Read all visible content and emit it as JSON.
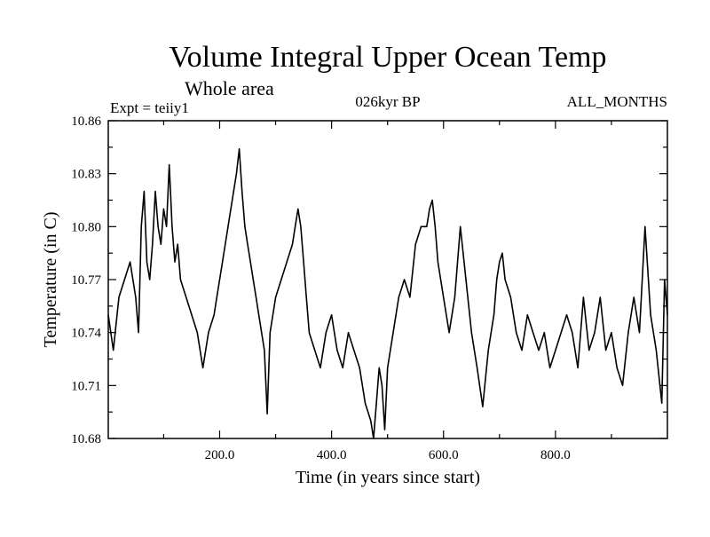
{
  "chart_data": {
    "type": "line",
    "title": "Volume Integral Upper Ocean Temp",
    "subtitle": "Whole area",
    "experiment": "Expt = teiiy1",
    "period": "026kyr BP",
    "months": "ALL_MONTHS",
    "xlabel": "Time (in years since start)",
    "ylabel": "Temperature (in C)",
    "xlim": [
      1,
      1000
    ],
    "ylim": [
      10.68,
      10.86
    ],
    "x_ticks": [
      200,
      400,
      600,
      800
    ],
    "x_tick_labels": [
      "200.0",
      "400.0",
      "600.0",
      "800.0"
    ],
    "y_ticks": [
      10.68,
      10.71,
      10.74,
      10.77,
      10.8,
      10.83,
      10.86
    ],
    "y_tick_labels": [
      "10.68",
      "10.71",
      "10.74",
      "10.77",
      "10.80",
      "10.83",
      "10.86"
    ],
    "grid": false,
    "series": [
      {
        "color": "#000000",
        "x": [
          1,
          10,
          20,
          30,
          40,
          50,
          55,
          60,
          65,
          70,
          75,
          80,
          85,
          90,
          95,
          100,
          105,
          110,
          115,
          120,
          125,
          130,
          140,
          150,
          160,
          170,
          180,
          190,
          195,
          200,
          210,
          220,
          230,
          235,
          240,
          245,
          250,
          255,
          260,
          265,
          270,
          280,
          285,
          290,
          300,
          310,
          320,
          330,
          335,
          340,
          345,
          350,
          355,
          360,
          370,
          380,
          390,
          400,
          410,
          420,
          430,
          440,
          450,
          460,
          470,
          475,
          480,
          485,
          490,
          495,
          500,
          510,
          520,
          530,
          540,
          550,
          560,
          570,
          575,
          580,
          585,
          590,
          600,
          610,
          620,
          630,
          640,
          650,
          660,
          670,
          680,
          690,
          695,
          700,
          705,
          710,
          720,
          730,
          740,
          750,
          760,
          770,
          780,
          790,
          800,
          810,
          820,
          830,
          840,
          850,
          860,
          870,
          880,
          890,
          900,
          910,
          920,
          930,
          940,
          950,
          960,
          970,
          980,
          990,
          995,
          1000
        ],
        "y": [
          10.75,
          10.73,
          10.76,
          10.77,
          10.78,
          10.76,
          10.74,
          10.8,
          10.82,
          10.78,
          10.77,
          10.79,
          10.82,
          10.8,
          10.79,
          10.81,
          10.8,
          10.835,
          10.8,
          10.78,
          10.79,
          10.77,
          10.76,
          10.75,
          10.74,
          10.72,
          10.74,
          10.75,
          10.76,
          10.77,
          10.79,
          10.81,
          10.83,
          10.844,
          10.82,
          10.8,
          10.79,
          10.78,
          10.77,
          10.76,
          10.75,
          10.73,
          10.694,
          10.74,
          10.76,
          10.77,
          10.78,
          10.79,
          10.8,
          10.81,
          10.8,
          10.78,
          10.76,
          10.74,
          10.73,
          10.72,
          10.74,
          10.75,
          10.73,
          10.72,
          10.74,
          10.73,
          10.72,
          10.7,
          10.69,
          10.68,
          10.7,
          10.72,
          10.71,
          10.685,
          10.72,
          10.74,
          10.76,
          10.77,
          10.76,
          10.79,
          10.8,
          10.8,
          10.81,
          10.815,
          10.8,
          10.78,
          10.76,
          10.74,
          10.76,
          10.8,
          10.77,
          10.74,
          10.72,
          10.698,
          10.73,
          10.75,
          10.77,
          10.78,
          10.785,
          10.77,
          10.76,
          10.74,
          10.73,
          10.75,
          10.74,
          10.73,
          10.74,
          10.72,
          10.73,
          10.74,
          10.75,
          10.74,
          10.72,
          10.76,
          10.73,
          10.74,
          10.76,
          10.73,
          10.74,
          10.72,
          10.71,
          10.74,
          10.76,
          10.74,
          10.8,
          10.75,
          10.73,
          10.7,
          10.77,
          10.75
        ]
      }
    ]
  }
}
